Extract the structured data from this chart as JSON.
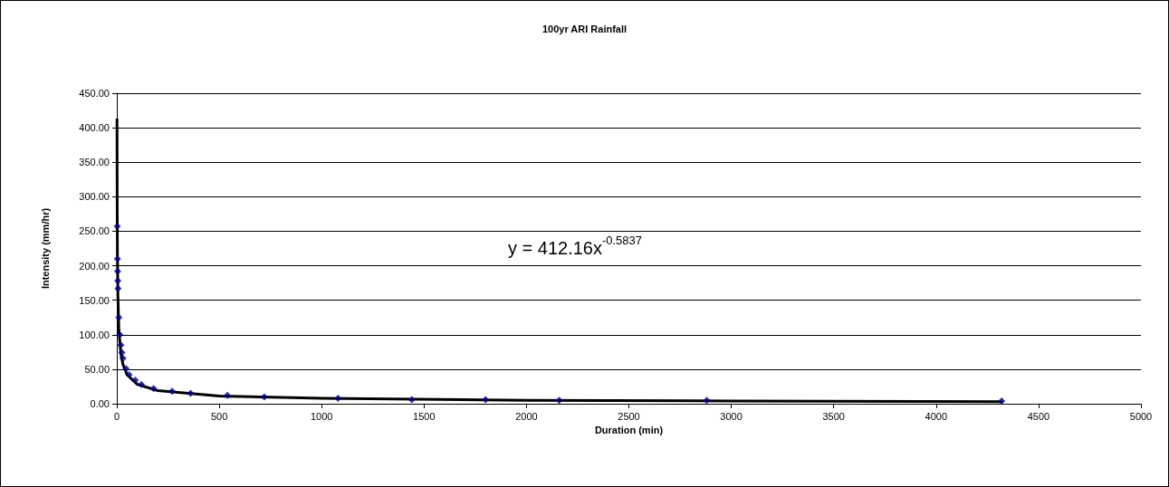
{
  "chart_data": {
    "type": "scatter",
    "title": "100yr ARI Rainfall",
    "xlabel": "Duration (min)",
    "ylabel": "Intensity (mm/hr)",
    "annotations": [
      "y = 412.16x$^{-0.5837}$"
    ],
    "series": [
      {
        "color": "#000080",
        "marker": "diamond",
        "x": [
          2,
          3,
          4,
          5,
          6,
          10,
          15,
          20,
          25,
          30,
          45,
          60,
          90,
          120,
          180,
          270,
          360,
          540,
          720,
          1080,
          1440,
          1800,
          2160,
          2880,
          4320
        ],
        "values": [
          257,
          210,
          192,
          178,
          167,
          125,
          100,
          85,
          74,
          66,
          51,
          42,
          34,
          28,
          22,
          18,
          15,
          12,
          10,
          8,
          6,
          6,
          5,
          5,
          4
        ]
      },
      {
        "type": "line",
        "color": "#000000",
        "marker": "none",
        "x": [
          1,
          2,
          3,
          5,
          10,
          20,
          30,
          50,
          100,
          200,
          500,
          1000,
          2000,
          3000,
          4320
        ],
        "values": [
          412,
          275,
          217,
          161,
          107,
          72,
          57,
          42,
          28,
          19,
          11,
          8,
          5,
          4,
          3
        ]
      }
    ],
    "xlim": [
      0,
      5000
    ],
    "xticks": [
      0,
      500,
      1000,
      1500,
      2000,
      2500,
      3000,
      3500,
      4000,
      4500,
      5000
    ],
    "ylim": [
      0,
      450
    ],
    "yticks": [
      {
        "value": 0,
        "label": "0.00"
      },
      {
        "value": 50,
        "label": "50.00"
      },
      {
        "value": 100,
        "label": "100.00"
      },
      {
        "value": 150,
        "label": "150.00"
      },
      {
        "value": 200,
        "label": "200.00"
      },
      {
        "value": 250,
        "label": "250.00"
      },
      {
        "value": 300,
        "label": "300.00"
      },
      {
        "value": 350,
        "label": "350.00"
      },
      {
        "value": 400,
        "label": "400.00"
      },
      {
        "value": 450,
        "label": "450.00"
      }
    ],
    "grid": "y"
  }
}
